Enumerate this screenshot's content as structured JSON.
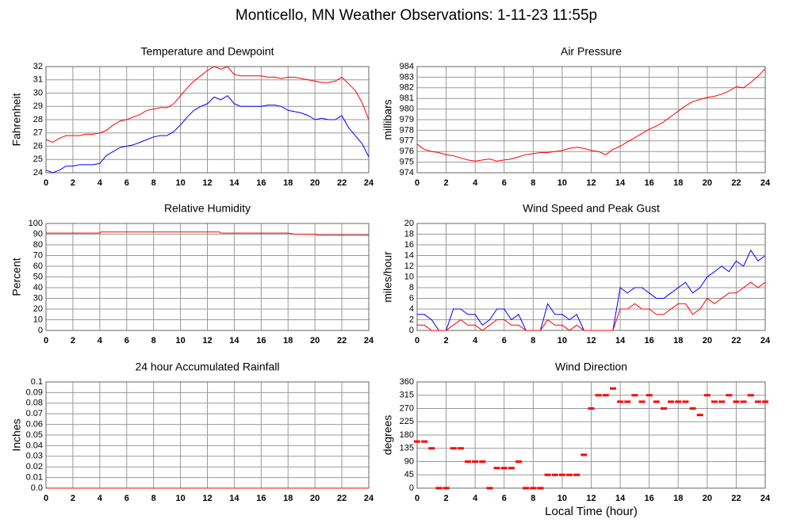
{
  "title": "Monticello, MN Weather Observations: 1-11-23 11:55p",
  "chart_data": [
    {
      "type": "line",
      "title": "Temperature and Dewpoint",
      "ylabel": "Fahrenheit",
      "x": [
        0,
        0.5,
        1,
        1.5,
        2,
        2.5,
        3,
        3.5,
        4,
        4.5,
        5,
        5.5,
        6,
        6.5,
        7,
        7.5,
        8,
        8.5,
        9,
        9.5,
        10,
        10.5,
        11,
        11.5,
        12,
        12.5,
        13,
        13.5,
        14,
        14.5,
        15,
        15.5,
        16,
        16.5,
        17,
        17.5,
        18,
        18.5,
        19,
        19.5,
        20,
        20.5,
        21,
        21.5,
        22,
        22.5,
        23,
        23.5,
        24
      ],
      "series": [
        {
          "color": "#ff0000",
          "values": [
            26.5,
            26.3,
            26.6,
            26.8,
            26.8,
            26.8,
            26.9,
            26.9,
            27.0,
            27.2,
            27.6,
            27.9,
            28.0,
            28.2,
            28.4,
            28.7,
            28.8,
            28.9,
            28.9,
            29.2,
            29.8,
            30.4,
            30.9,
            31.3,
            31.7,
            32,
            31.8,
            32,
            31.4,
            31.3,
            31.3,
            31.3,
            31.3,
            31.2,
            31.2,
            31.1,
            31.2,
            31.2,
            31.1,
            31.0,
            30.9,
            30.8,
            30.8,
            30.9,
            31.2,
            30.7,
            30.2,
            29.3,
            28.0
          ]
        },
        {
          "color": "#0000ff",
          "values": [
            24.2,
            24.0,
            24.2,
            24.5,
            24.5,
            24.6,
            24.6,
            24.6,
            24.7,
            25.3,
            25.6,
            25.9,
            26.0,
            26.1,
            26.3,
            26.5,
            26.7,
            26.8,
            26.8,
            27.1,
            27.6,
            28.2,
            28.7,
            29.0,
            29.2,
            29.7,
            29.5,
            29.8,
            29.2,
            29.0,
            29.0,
            29.0,
            29.0,
            29.1,
            29.1,
            29.0,
            28.7,
            28.6,
            28.5,
            28.3,
            28.0,
            28.1,
            28.0,
            28.0,
            28.3,
            27.4,
            26.8,
            26.2,
            25.2
          ]
        }
      ],
      "xlim": [
        0,
        24
      ],
      "xticks": [
        0,
        2,
        4,
        6,
        8,
        10,
        12,
        14,
        16,
        18,
        20,
        22,
        24
      ],
      "ylim": [
        24,
        32
      ],
      "yticks": [
        24,
        25,
        26,
        27,
        28,
        29,
        30,
        31,
        32
      ],
      "grid": true
    },
    {
      "type": "line",
      "title": "Air Pressure",
      "ylabel": "millibars",
      "x": [
        0,
        0.5,
        1,
        1.5,
        2,
        2.5,
        3,
        3.5,
        4,
        4.5,
        5,
        5.5,
        6,
        6.5,
        7,
        7.5,
        8,
        8.5,
        9,
        9.5,
        10,
        10.5,
        11,
        11.5,
        12,
        12.5,
        13,
        13.5,
        14,
        14.5,
        15,
        15.5,
        16,
        16.5,
        17,
        17.5,
        18,
        18.5,
        19,
        19.5,
        20,
        20.5,
        21,
        21.5,
        22,
        22.5,
        23,
        23.5,
        24
      ],
      "series": [
        {
          "color": "#ff0000",
          "values": [
            976.7,
            976.2,
            976.0,
            975.9,
            975.7,
            975.6,
            975.4,
            975.2,
            975.1,
            975.2,
            975.3,
            975.1,
            975.2,
            975.3,
            975.5,
            975.7,
            975.8,
            975.9,
            975.9,
            976.0,
            976.1,
            976.3,
            976.4,
            976.3,
            976.1,
            976.0,
            975.7,
            976.2,
            976.5,
            976.9,
            977.3,
            977.7,
            978.1,
            978.4,
            978.8,
            979.3,
            979.8,
            980.3,
            980.7,
            980.9,
            981.1,
            981.2,
            981.4,
            981.7,
            982.1,
            982.0,
            982.5,
            983.1,
            983.8
          ]
        }
      ],
      "xlim": [
        0,
        24
      ],
      "xticks": [
        0,
        2,
        4,
        6,
        8,
        10,
        12,
        14,
        16,
        18,
        20,
        22,
        24
      ],
      "ylim": [
        974,
        984
      ],
      "yticks": [
        974,
        975,
        976,
        977,
        978,
        979,
        980,
        981,
        982,
        983,
        984
      ],
      "grid": true
    },
    {
      "type": "line",
      "title": "Relative Humidity",
      "ylabel": "Percent",
      "x": [
        0,
        4,
        4.1,
        12.9,
        13,
        18,
        18.5,
        20,
        20.2,
        24
      ],
      "series": [
        {
          "color": "#ff0000",
          "values": [
            91,
            91,
            92,
            92,
            91,
            91,
            90,
            90,
            89,
            89
          ]
        }
      ],
      "xlim": [
        0,
        24
      ],
      "xticks": [
        0,
        2,
        4,
        6,
        8,
        10,
        12,
        14,
        16,
        18,
        20,
        22,
        24
      ],
      "ylim": [
        0,
        100
      ],
      "yticks": [
        0,
        10,
        20,
        30,
        40,
        50,
        60,
        70,
        80,
        90,
        100
      ],
      "grid": true
    },
    {
      "type": "line",
      "title": "Wind Speed and Peak Gust",
      "ylabel": "miles/hour",
      "x": [
        0,
        0.5,
        1,
        1.5,
        2,
        2.5,
        3,
        3.5,
        4,
        4.5,
        5,
        5.5,
        6,
        6.5,
        7,
        7.5,
        8,
        8.5,
        9,
        9.5,
        10,
        10.5,
        11,
        11.5,
        12,
        12.5,
        13,
        13.5,
        14,
        14.5,
        15,
        15.5,
        16,
        16.5,
        17,
        17.5,
        18,
        18.5,
        19,
        19.5,
        20,
        20.5,
        21,
        21.5,
        22,
        22.5,
        23,
        23.5,
        24
      ],
      "series": [
        {
          "color": "#0000ff",
          "values": [
            3,
            3,
            2,
            0,
            0,
            4,
            4,
            3,
            3,
            1,
            2,
            4,
            4,
            2,
            3,
            0,
            0,
            0,
            5,
            3,
            3,
            2,
            3,
            0,
            0,
            0,
            0,
            0,
            8,
            7,
            8,
            8,
            7,
            6,
            6,
            7,
            8,
            9,
            7,
            8,
            10,
            11,
            12,
            11,
            13,
            12,
            15,
            13,
            14
          ]
        },
        {
          "color": "#ff0000",
          "values": [
            1,
            1,
            0,
            0,
            0,
            1,
            2,
            1,
            1,
            0,
            1,
            2,
            2,
            1,
            1,
            0,
            0,
            0,
            2,
            1,
            1,
            0,
            1,
            0,
            0,
            0,
            0,
            0,
            4,
            4,
            5,
            4,
            4,
            3,
            3,
            4,
            5,
            5,
            3,
            4,
            6,
            5,
            6,
            7,
            7,
            8,
            9,
            8,
            9
          ]
        }
      ],
      "xlim": [
        0,
        24
      ],
      "xticks": [
        0,
        2,
        4,
        6,
        8,
        10,
        12,
        14,
        16,
        18,
        20,
        22,
        24
      ],
      "ylim": [
        0,
        20
      ],
      "yticks": [
        0,
        2,
        4,
        6,
        8,
        10,
        12,
        14,
        16,
        18,
        20
      ],
      "grid": true
    },
    {
      "type": "line",
      "title": "24 hour Accumulated Rainfall",
      "ylabel": "Inches",
      "x": [
        0,
        24
      ],
      "series": [
        {
          "color": "#ff0000",
          "values": [
            0,
            0
          ]
        }
      ],
      "xlim": [
        0,
        24
      ],
      "xticks": [
        0,
        2,
        4,
        6,
        8,
        10,
        12,
        14,
        16,
        18,
        20,
        22,
        24
      ],
      "ylim": [
        0,
        0.1
      ],
      "yticks": [
        {
          "value": 0,
          "label": "0.0"
        },
        0.01,
        0.02,
        0.03,
        0.04,
        0.05,
        0.06,
        0.07,
        0.08,
        0.09,
        0.1
      ],
      "grid": true
    },
    {
      "type": "scatter",
      "title": "Wind Direction",
      "ylabel": "degrees",
      "xlabel": "Local Time (hour)",
      "x": [
        0,
        0.5,
        1,
        1.5,
        2,
        2.5,
        3,
        3.5,
        4,
        4.5,
        5,
        5.5,
        6,
        6.5,
        7,
        7.5,
        8,
        8.5,
        9,
        9.5,
        10,
        10.5,
        11,
        11.5,
        12,
        12.5,
        13,
        13.5,
        14,
        14.5,
        15,
        15.5,
        16,
        16.5,
        17,
        17.5,
        18,
        18.5,
        19,
        19.5,
        20,
        20.5,
        21,
        21.5,
        22,
        22.5,
        23,
        23.5,
        24
      ],
      "series": [
        {
          "color": "#ff0000",
          "values": [
            158,
            158,
            135,
            0,
            0,
            135,
            135,
            90,
            90,
            90,
            0,
            68,
            68,
            68,
            90,
            0,
            0,
            0,
            45,
            45,
            45,
            45,
            45,
            113,
            270,
            315,
            315,
            338,
            293,
            293,
            315,
            293,
            315,
            293,
            270,
            293,
            293,
            293,
            270,
            248,
            315,
            293,
            293,
            315,
            293,
            293,
            315,
            293,
            293
          ]
        }
      ],
      "xlim": [
        0,
        24
      ],
      "xticks": [
        0,
        2,
        4,
        6,
        8,
        10,
        12,
        14,
        16,
        18,
        20,
        22,
        24
      ],
      "ylim": [
        0,
        360
      ],
      "yticks": [
        0,
        45,
        90,
        135,
        180,
        225,
        270,
        315,
        360
      ],
      "grid": true
    }
  ]
}
